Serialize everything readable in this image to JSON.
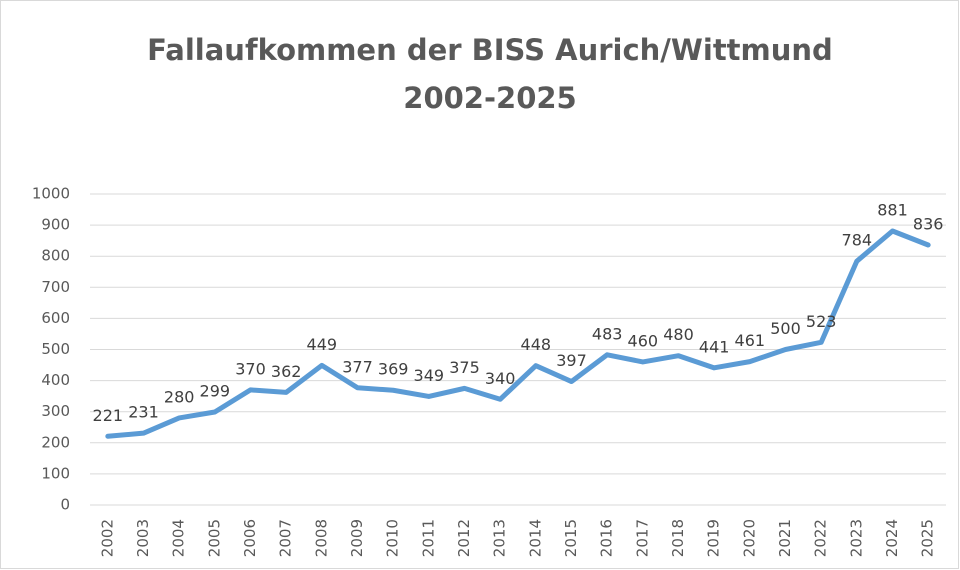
{
  "chart_data": {
    "type": "line",
    "title": [
      "Fallaufkommen der BISS Aurich/Wittmund",
      "2002-2025"
    ],
    "categories": [
      "2002",
      "2003",
      "2004",
      "2005",
      "2006",
      "2007",
      "2008",
      "2009",
      "2010",
      "2011",
      "2012",
      "2013",
      "2014",
      "2015",
      "2016",
      "2017",
      "2018",
      "2019",
      "2020",
      "2021",
      "2022",
      "2023",
      "2024",
      "2025"
    ],
    "values": [
      221,
      231,
      280,
      299,
      370,
      362,
      449,
      377,
      369,
      349,
      375,
      340,
      448,
      397,
      483,
      460,
      480,
      441,
      461,
      500,
      523,
      784,
      881,
      836
    ],
    "color": "#5b9bd5",
    "ylim": [
      0,
      1000
    ],
    "yticks": [
      0,
      100,
      200,
      300,
      400,
      500,
      600,
      700,
      800,
      900,
      1000
    ],
    "grid": true,
    "data_labels": true
  }
}
